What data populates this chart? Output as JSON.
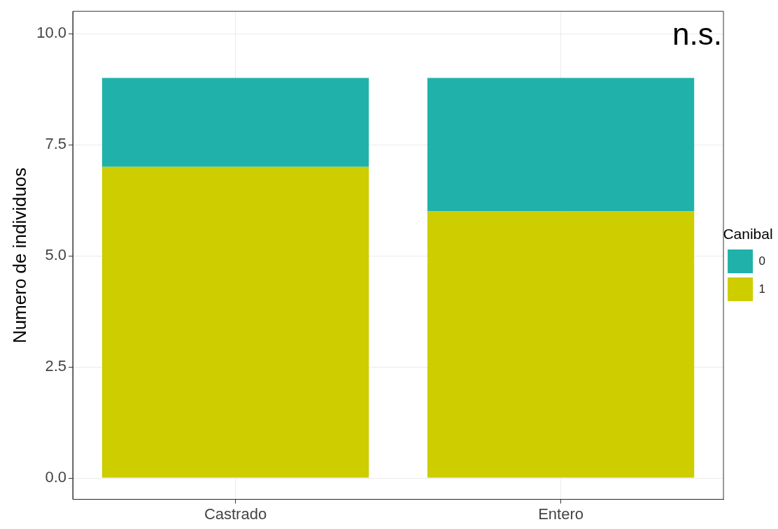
{
  "chart_data": {
    "type": "bar",
    "stacked": true,
    "ylabel": "Numero de individuos",
    "legend_title": "Canibal",
    "legend": "right",
    "grid": true,
    "categories": [
      "Castrado",
      "Entero"
    ],
    "series": [
      {
        "name": "1",
        "color": "#cdcd00",
        "values": [
          7,
          6
        ]
      },
      {
        "name": "0",
        "color": "#20b2aa",
        "values": [
          2,
          3
        ]
      }
    ],
    "ylim": [
      -0.48,
      10.5
    ],
    "yticks": [
      {
        "value": 0,
        "label": "0.0"
      },
      {
        "value": 2.5,
        "label": "2.5"
      },
      {
        "value": 5,
        "label": "5.0"
      },
      {
        "value": 7.5,
        "label": "7.5"
      },
      {
        "value": 10,
        "label": "10.0"
      }
    ],
    "annotations": [
      "n.s."
    ]
  }
}
